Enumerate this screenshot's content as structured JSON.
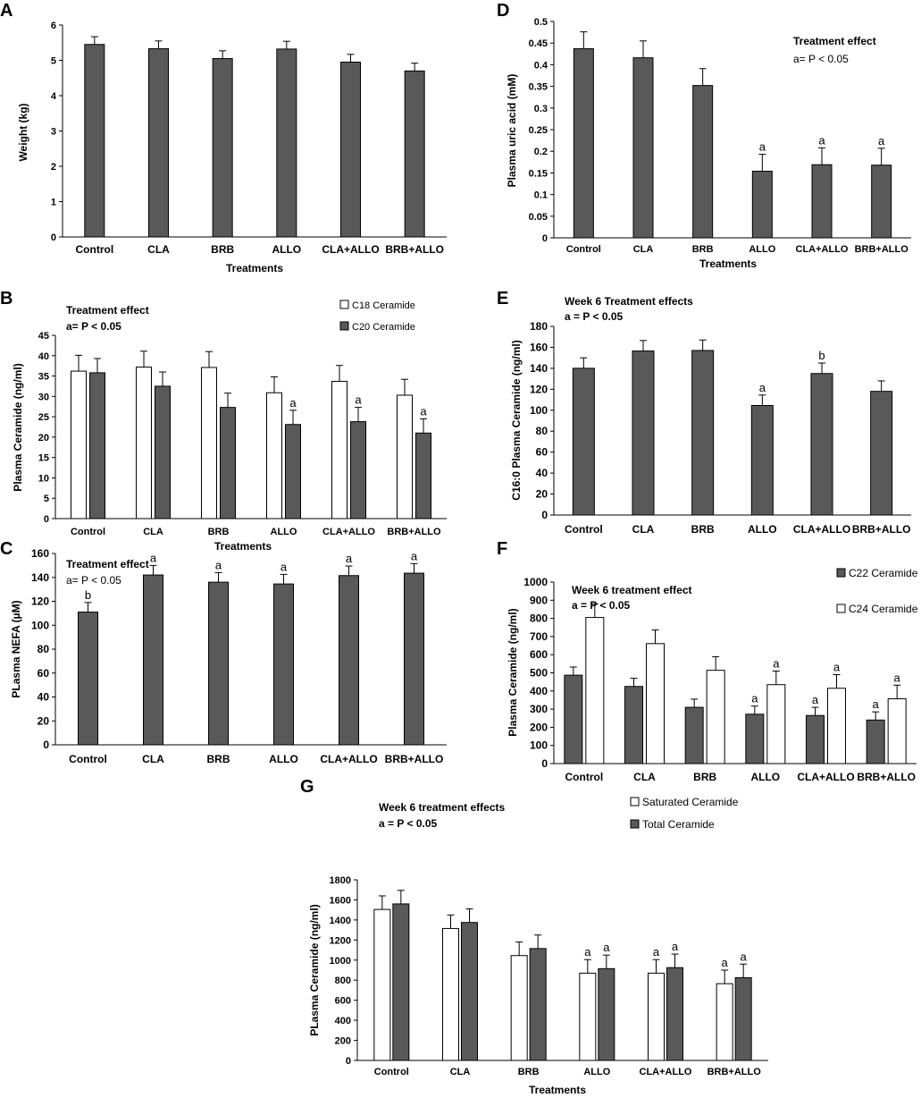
{
  "figure": {
    "description_free": true
  },
  "chart_data": [
    {
      "panel": "A",
      "type": "bar",
      "title": "",
      "xlabel": "Treatments",
      "ylabel": "Weight (kg)",
      "ylim": [
        0,
        6
      ],
      "yticks": [
        "0",
        "1",
        "2",
        "3",
        "4",
        "5",
        "6"
      ],
      "categories": [
        "Control",
        "CLA",
        "BRB",
        "ALLO",
        "CLA+ALLO",
        "BRB+ALLO"
      ],
      "series": [
        {
          "name": "Weight",
          "color": "#595959",
          "values": [
            5.45,
            5.33,
            5.05,
            5.32,
            4.95,
            4.7
          ],
          "errors": [
            0.22,
            0.22,
            0.22,
            0.22,
            0.22,
            0.22
          ],
          "sig": [
            "",
            "",
            "",
            "",
            "",
            ""
          ]
        }
      ],
      "annotations": [],
      "legend": []
    },
    {
      "panel": "D",
      "type": "bar",
      "xlabel": "Treatments",
      "ylabel": "Plasma uric acid (mM)",
      "ylim": [
        0,
        0.5
      ],
      "yticks": [
        "0",
        "0.05",
        "0.1",
        "0.15",
        "0.2",
        "0.25",
        "0.3",
        "0.35",
        "0.4",
        "0.45",
        "0.5"
      ],
      "categories": [
        "Control",
        "CLA",
        "BRB",
        "ALLO",
        "CLA+ALLO",
        "BRB+ALLO"
      ],
      "series": [
        {
          "name": "Uric acid",
          "color": "#595959",
          "values": [
            0.437,
            0.416,
            0.352,
            0.154,
            0.169,
            0.168
          ],
          "errors": [
            0.039,
            0.039,
            0.039,
            0.039,
            0.039,
            0.039
          ],
          "sig": [
            "",
            "",
            "",
            "a",
            "a",
            "a"
          ]
        }
      ],
      "annotations": [
        "Treatment effect",
        "a= P < 0.05"
      ],
      "legend": []
    },
    {
      "panel": "B",
      "type": "bar",
      "xlabel": "Treatments",
      "ylabel": "Plasma Ceramide (ng/ml)",
      "ylim": [
        0,
        45
      ],
      "yticks": [
        "0",
        "5",
        "10",
        "15",
        "20",
        "25",
        "30",
        "35",
        "40",
        "45"
      ],
      "categories": [
        "Control",
        "CLA",
        "BRB",
        "ALLO",
        "CLA+ALLO",
        "BRB+ALLO"
      ],
      "series": [
        {
          "name": "C18 Ceramide",
          "color": "#ffffff",
          "values": [
            36.2,
            37.2,
            37.1,
            30.9,
            33.7,
            30.3
          ],
          "errors": [
            3.9,
            3.9,
            3.9,
            3.9,
            3.9,
            3.9
          ],
          "sig": [
            "",
            "",
            "",
            "",
            "",
            ""
          ]
        },
        {
          "name": "C20 Ceramide",
          "color": "#595959",
          "values": [
            35.8,
            32.5,
            27.3,
            23.1,
            23.8,
            21.0
          ],
          "errors": [
            3.5,
            3.5,
            3.5,
            3.5,
            3.5,
            3.5
          ],
          "sig": [
            "",
            "",
            "",
            "a",
            "a",
            "a"
          ]
        }
      ],
      "annotations": [
        "Treatment effect",
        "a= P < 0.05"
      ],
      "legend": [
        "C18 Ceramide",
        "C20 Ceramide"
      ]
    },
    {
      "panel": "E",
      "type": "bar",
      "xlabel": "",
      "ylabel": "C16:0  Plasma Ceramide (ng/ml)",
      "ylim": [
        0,
        180
      ],
      "yticks": [
        "0",
        "20",
        "40",
        "60",
        "80",
        "100",
        "120",
        "140",
        "160",
        "180"
      ],
      "categories": [
        "Control",
        "CLA",
        "BRB",
        "ALLO",
        "CLA+ALLO",
        "BRB+ALLO"
      ],
      "series": [
        {
          "name": "C16:0",
          "color": "#595959",
          "values": [
            140,
            156.5,
            157,
            104.5,
            135,
            118
          ],
          "errors": [
            10,
            10,
            10,
            10,
            10,
            10
          ],
          "sig": [
            "",
            "",
            "",
            "a",
            "b",
            ""
          ]
        }
      ],
      "annotations": [
        "Week 6 Treatment effects",
        "a = P < 0.05"
      ],
      "legend": []
    },
    {
      "panel": "C",
      "type": "bar",
      "xlabel": "",
      "ylabel": "PLasma NEFA (µM)",
      "ylim": [
        0,
        160
      ],
      "yticks": [
        "0",
        "20",
        "40",
        "60",
        "80",
        "100",
        "120",
        "140",
        "160"
      ],
      "categories": [
        "Control",
        "CLA",
        "BRB",
        "ALLO",
        "CLA+ALLO",
        "BRB+ALLO"
      ],
      "series": [
        {
          "name": "NEFA",
          "color": "#595959",
          "values": [
            111,
            142,
            136,
            134.5,
            141.5,
            143.5
          ],
          "errors": [
            8,
            8,
            8,
            8,
            8,
            8
          ],
          "sig": [
            "b",
            "a",
            "a",
            "a",
            "a",
            "a"
          ]
        }
      ],
      "annotations": [
        "Treatment effect",
        "a= P < 0.05"
      ],
      "legend": []
    },
    {
      "panel": "F",
      "type": "bar",
      "xlabel": "",
      "ylabel": "Plasma Ceramide (ng/ml)",
      "ylim": [
        0,
        1000
      ],
      "yticks": [
        "0",
        "100",
        "200",
        "300",
        "400",
        "500",
        "600",
        "700",
        "800",
        "900",
        "1000"
      ],
      "categories": [
        "Control",
        "CLA",
        "BRB",
        "ALLO",
        "CLA+ALLO",
        "BRB+ALLO"
      ],
      "series": [
        {
          "name": "C22 Ceramide",
          "color": "#595959",
          "values": [
            487,
            425,
            310,
            272,
            265,
            240
          ],
          "errors": [
            45,
            45,
            45,
            45,
            45,
            45
          ],
          "sig": [
            "",
            "",
            "",
            "a",
            "a",
            "a"
          ]
        },
        {
          "name": "C24 Ceramide",
          "color": "#ffffff",
          "values": [
            805,
            661,
            514,
            435,
            415,
            357
          ],
          "errors": [
            75,
            75,
            75,
            75,
            75,
            75
          ],
          "sig": [
            "",
            "",
            "",
            "a",
            "a",
            "a"
          ]
        }
      ],
      "annotations": [
        "Week 6 treatment effect",
        "a =  P < 0.05"
      ],
      "legend": [
        "C22 Ceramide",
        "C24 Ceramide"
      ]
    },
    {
      "panel": "G",
      "type": "bar",
      "xlabel": "Treatments",
      "ylabel": "PLasma Ceramide (ng/ml)",
      "ylim": [
        0,
        1800
      ],
      "yticks": [
        "0",
        "200",
        "400",
        "600",
        "800",
        "1000",
        "1200",
        "1400",
        "1600",
        "1800"
      ],
      "categories": [
        "Control",
        "CLA",
        "BRB",
        "ALLO",
        "CLA+ALLO",
        "BRB+ALLO"
      ],
      "series": [
        {
          "name": "Saturated Ceramide",
          "color": "#ffffff",
          "values": [
            1505,
            1315,
            1045,
            870,
            870,
            765
          ],
          "errors": [
            135,
            135,
            135,
            135,
            135,
            135
          ],
          "sig": [
            "",
            "",
            "",
            "a",
            "a",
            "a"
          ]
        },
        {
          "name": "Total Ceramide",
          "color": "#595959",
          "values": [
            1560,
            1375,
            1115,
            915,
            925,
            825
          ],
          "errors": [
            135,
            135,
            135,
            135,
            135,
            135
          ],
          "sig": [
            "",
            "",
            "",
            "a",
            "a",
            "a"
          ]
        }
      ],
      "annotations": [
        "Week 6 treatment effects",
        "a = P < 0.05"
      ],
      "legend": [
        "Saturated Ceramide",
        "Total Ceramide"
      ]
    }
  ]
}
